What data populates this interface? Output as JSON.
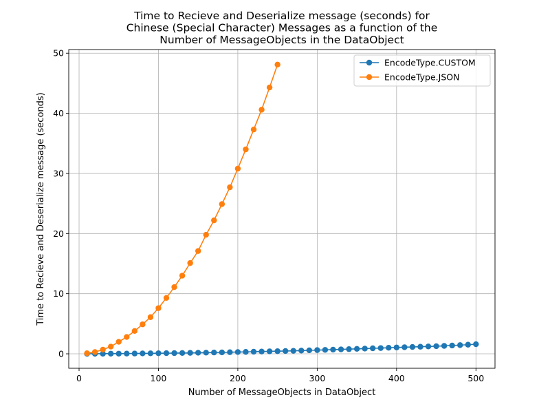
{
  "chart_data": {
    "type": "line",
    "title": "Time to Recieve and Deserialize message (seconds) for\nChinese (Special Character) Messages as a function of the\nNumber of MessageObjects in the DataObject",
    "title_lines": [
      "Time to Recieve and Deserialize message (seconds) for",
      "Chinese (Special Character) Messages as a function of the",
      "Number of MessageObjects in the DataObject"
    ],
    "xlabel": "Number of MessageObjects in DataObject",
    "ylabel": "Time to Recieve and Deserialize message (seconds)",
    "xlim": [
      -13,
      524
    ],
    "ylim": [
      -2.4,
      50.6
    ],
    "xticks": [
      0,
      100,
      200,
      300,
      400,
      500
    ],
    "yticks": [
      0,
      10,
      20,
      30,
      40,
      50
    ],
    "grid": true,
    "legend_position": "top-right",
    "series": [
      {
        "name": "EncodeType.CUSTOM",
        "color": "#1f77b4",
        "x": [
          10,
          20,
          30,
          40,
          50,
          60,
          70,
          80,
          90,
          100,
          110,
          120,
          130,
          140,
          150,
          160,
          170,
          180,
          190,
          200,
          210,
          220,
          230,
          240,
          250,
          260,
          270,
          280,
          290,
          300,
          310,
          320,
          330,
          340,
          350,
          360,
          370,
          380,
          390,
          400,
          410,
          420,
          430,
          440,
          450,
          460,
          470,
          480,
          490,
          500
        ],
        "y": [
          0.01,
          0.01,
          0.02,
          0.03,
          0.03,
          0.04,
          0.05,
          0.07,
          0.08,
          0.1,
          0.11,
          0.12,
          0.14,
          0.16,
          0.18,
          0.2,
          0.22,
          0.24,
          0.27,
          0.3,
          0.32,
          0.35,
          0.38,
          0.41,
          0.44,
          0.47,
          0.5,
          0.54,
          0.58,
          0.62,
          0.66,
          0.7,
          0.74,
          0.78,
          0.83,
          0.87,
          0.92,
          0.96,
          1.01,
          1.06,
          1.1,
          1.14,
          1.18,
          1.23,
          1.27,
          1.32,
          1.38,
          1.45,
          1.52,
          1.6
        ]
      },
      {
        "name": "EncodeType.JSON",
        "color": "#ff7f0e",
        "x": [
          10,
          20,
          30,
          40,
          50,
          60,
          70,
          80,
          90,
          100,
          110,
          120,
          130,
          140,
          150,
          160,
          170,
          180,
          190,
          200,
          210,
          220,
          230,
          240,
          250
        ],
        "y": [
          0.1,
          0.3,
          0.7,
          1.2,
          2.0,
          2.8,
          3.8,
          4.9,
          6.1,
          7.6,
          9.3,
          11.1,
          13.0,
          15.1,
          17.1,
          19.8,
          22.2,
          24.9,
          27.7,
          30.8,
          34.0,
          37.3,
          40.6,
          44.3,
          48.1
        ]
      }
    ]
  }
}
